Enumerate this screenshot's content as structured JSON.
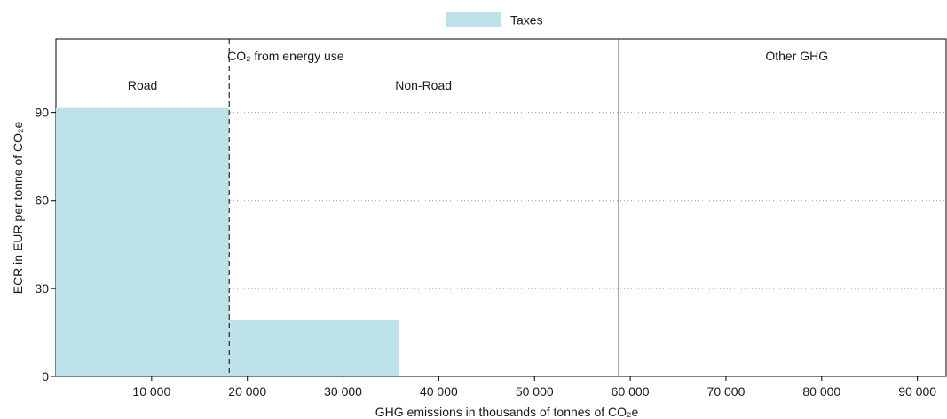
{
  "chart_data": {
    "type": "bar",
    "legend": {
      "position": "top-center",
      "items": [
        {
          "label": "Taxes",
          "color": "#bde1e8"
        }
      ]
    },
    "x_axis": {
      "label": "GHG emissions in thousands of tonnes of CO₂e",
      "ticks": [
        10000,
        20000,
        30000,
        40000,
        50000,
        60000,
        70000,
        80000,
        90000
      ],
      "tick_labels": [
        "10 000",
        "20 000",
        "30 000",
        "40 000",
        "50 000",
        "60 000",
        "70 000",
        "80 000",
        "90 000"
      ],
      "range": [
        0,
        93000
      ]
    },
    "y_axis": {
      "label": "ECR in EUR per tonne of CO₂e",
      "ticks": [
        0,
        30,
        60,
        90
      ],
      "tick_labels": [
        "0",
        "30",
        "60",
        "90"
      ],
      "range": [
        0,
        115
      ]
    },
    "grid": {
      "horizontal": true,
      "style": "dotted"
    },
    "series": [
      {
        "name": "Taxes",
        "color": "#bde1e8",
        "bars": [
          {
            "x_start": 0,
            "x_end": 18100,
            "value": 91.5
          },
          {
            "x_start": 18100,
            "x_end": 35800,
            "value": 19.3
          }
        ]
      }
    ],
    "dividers": [
      {
        "x": 18100,
        "style": "dashed"
      },
      {
        "x": 58800,
        "style": "solid"
      }
    ],
    "section_labels": [
      {
        "key": "co2",
        "x": 24000,
        "level": 1,
        "text": "CO₂ from energy use"
      },
      {
        "key": "other",
        "x": 77400,
        "level": 1,
        "text": "Other GHG"
      },
      {
        "key": "road",
        "x": 9050,
        "level": 2,
        "text": "Road"
      },
      {
        "key": "nonroad",
        "x": 38400,
        "level": 2,
        "text": "Non-Road"
      }
    ]
  }
}
